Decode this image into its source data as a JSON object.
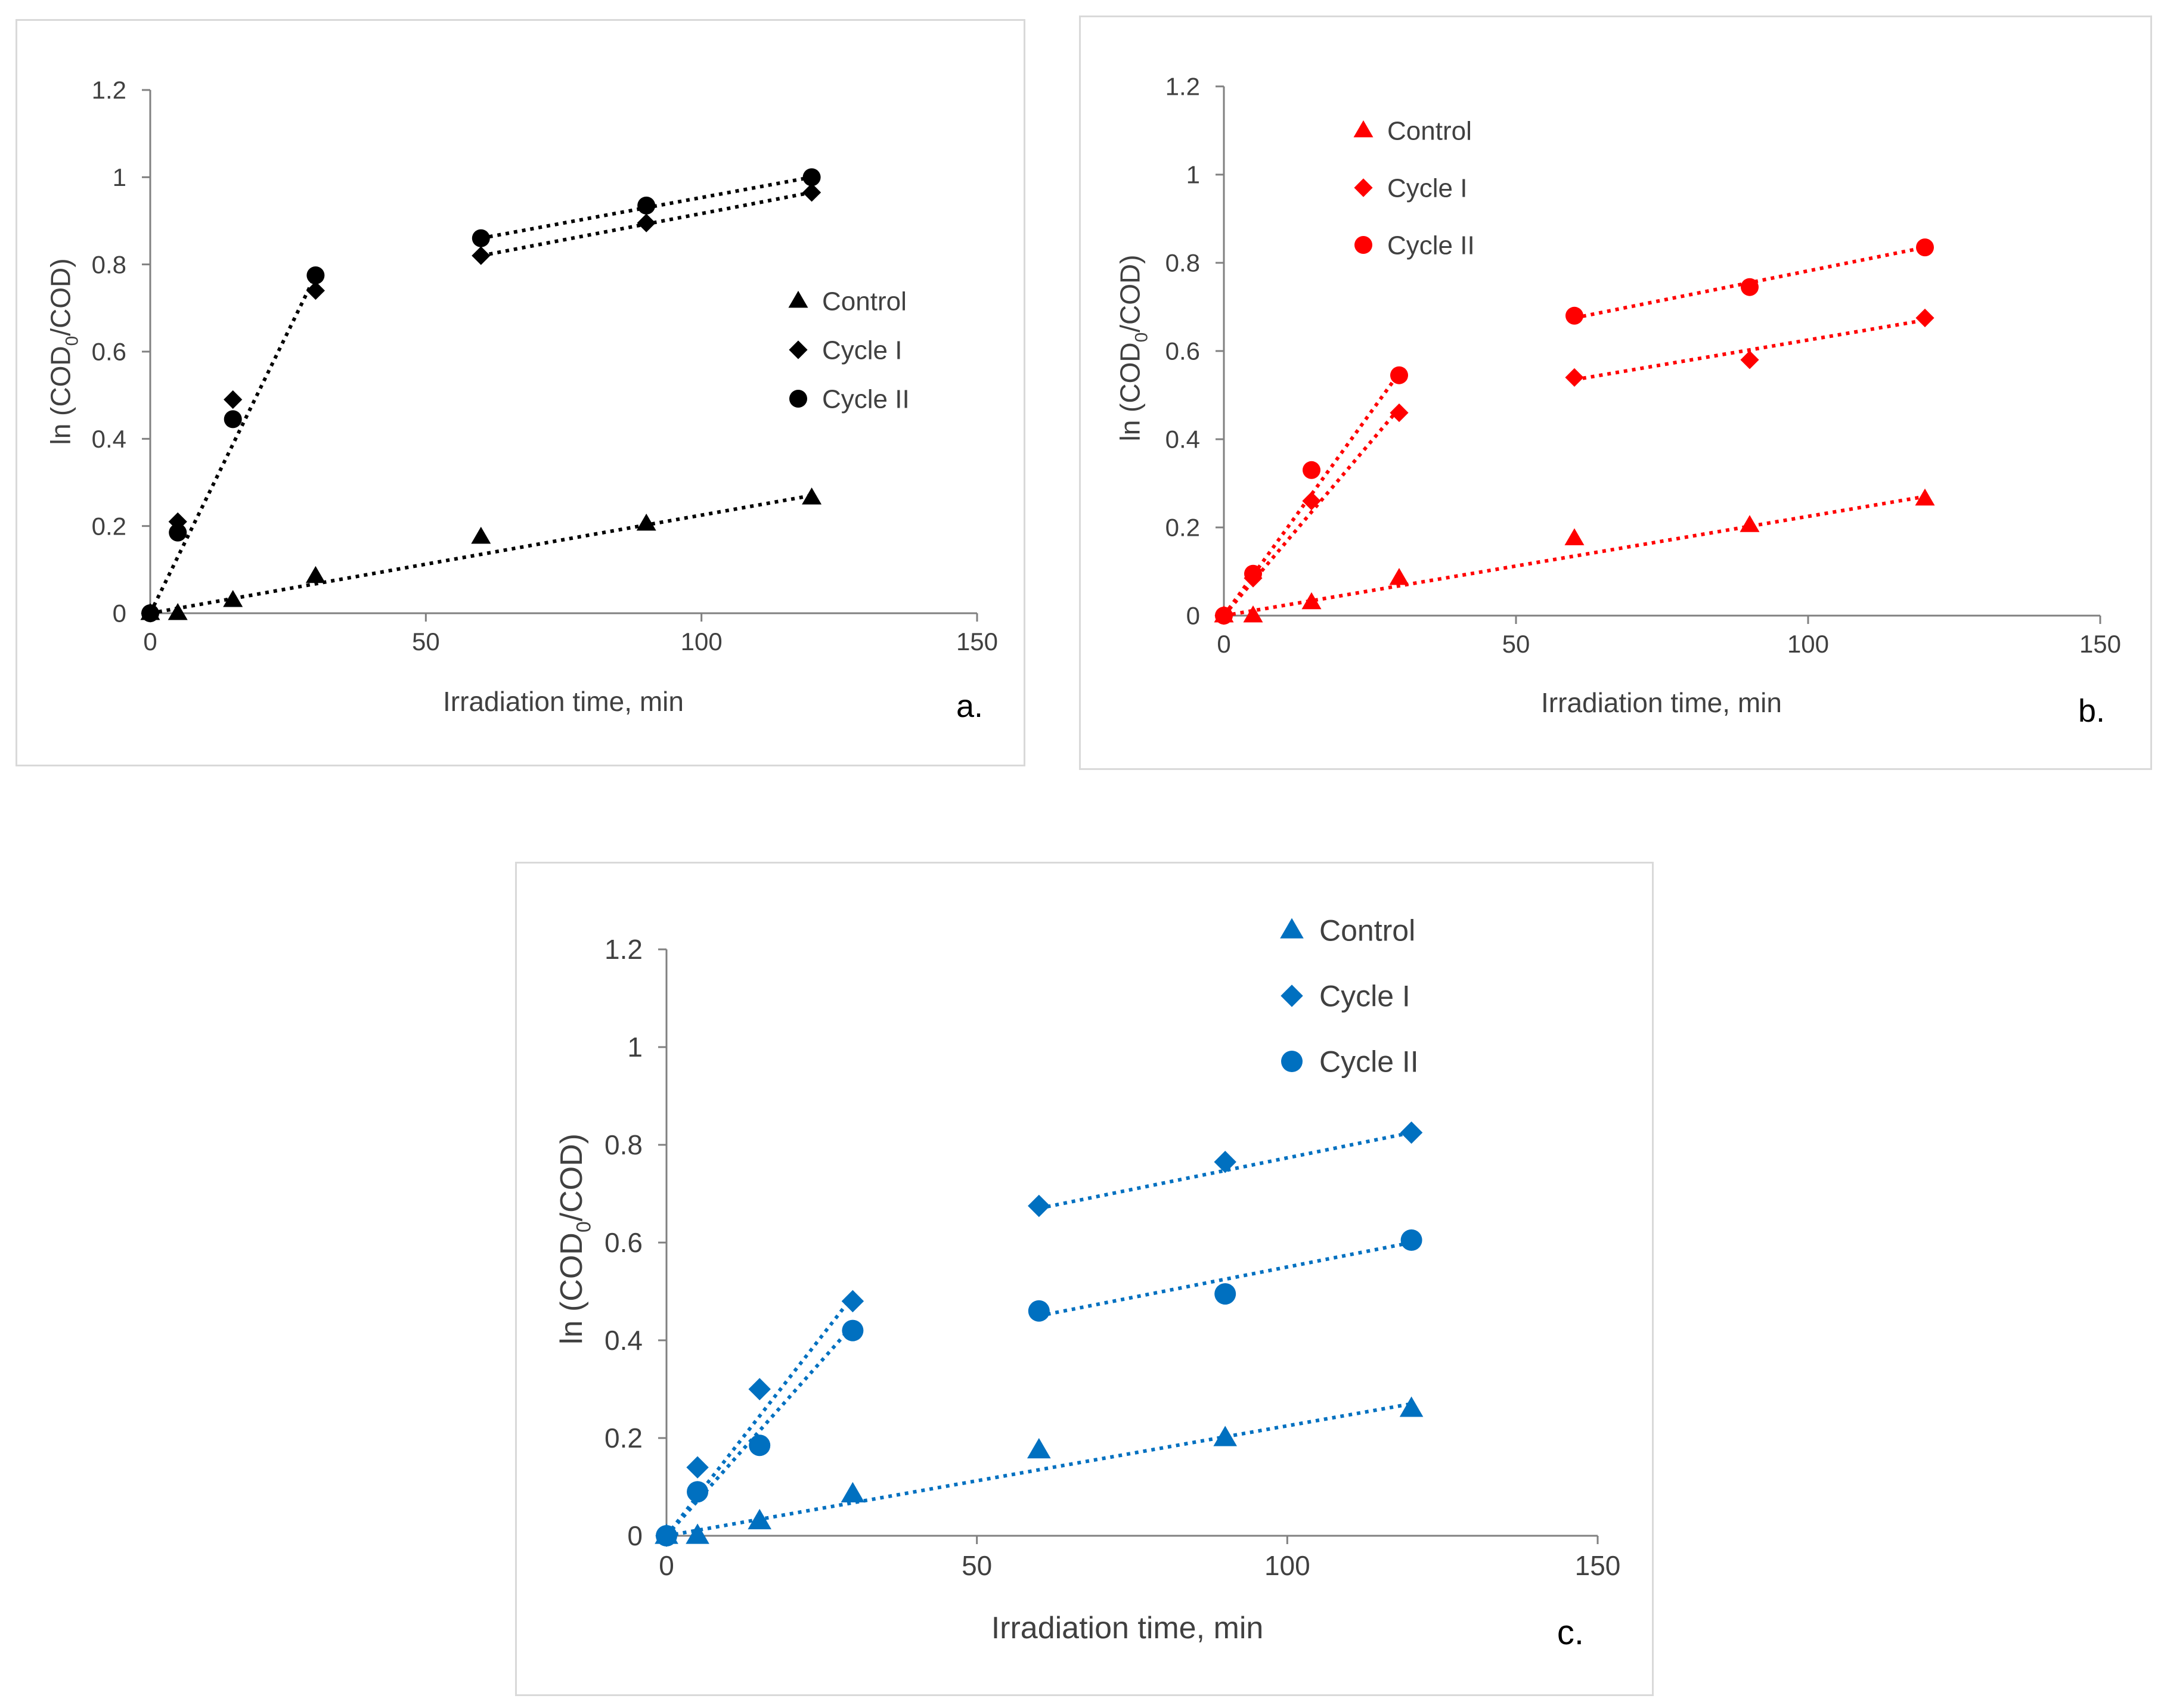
{
  "chart_data": [
    {
      "type": "scatter",
      "panel_label": "a.",
      "color": "#000000",
      "xlabel": "Irradiation time, min",
      "ylabel_main": "ln (COD",
      "ylabel_sub": "0",
      "ylabel_tail": "/COD)",
      "xlim": [
        0,
        150
      ],
      "ylim": [
        0,
        1.2
      ],
      "xticks": [
        "0",
        "50",
        "100",
        "150"
      ],
      "yticks": [
        "0",
        "0.2",
        "0.4",
        "0.6",
        "0.8",
        "1",
        "1.2"
      ],
      "legend_position": "right-middle",
      "series": [
        {
          "name": "Control",
          "marker": "triangle",
          "x": [
            0,
            5,
            15,
            30,
            60,
            90,
            120
          ],
          "y": [
            0,
            0,
            0.03,
            0.085,
            0.175,
            0.205,
            0.265
          ],
          "fits": [
            {
              "x": [
                0,
                120
              ],
              "y": [
                0,
                0.27
              ]
            }
          ]
        },
        {
          "name": "Cycle I",
          "marker": "diamond",
          "x": [
            0,
            5,
            15,
            30,
            60,
            90,
            120
          ],
          "y": [
            0,
            0.21,
            0.49,
            0.74,
            0.82,
            0.895,
            0.965
          ],
          "fits": [
            {
              "x": [
                0,
                30
              ],
              "y": [
                0,
                0.775
              ]
            },
            {
              "x": [
                60,
                120
              ],
              "y": [
                0.82,
                0.965
              ]
            }
          ]
        },
        {
          "name": "Cycle II",
          "marker": "circle",
          "x": [
            0,
            5,
            15,
            30,
            60,
            90,
            120
          ],
          "y": [
            0,
            0.185,
            0.445,
            0.775,
            0.86,
            0.935,
            1.0
          ],
          "fits": [
            {
              "x": [
                60,
                120
              ],
              "y": [
                0.86,
                1.0
              ]
            }
          ]
        }
      ]
    },
    {
      "type": "scatter",
      "panel_label": "b.",
      "color": "#ff0000",
      "xlabel": "Irradiation time, min",
      "ylabel_main": "ln (COD",
      "ylabel_sub": "0",
      "ylabel_tail": "/COD)",
      "xlim": [
        0,
        150
      ],
      "ylim": [
        0,
        1.2
      ],
      "xticks": [
        "0",
        "50",
        "100",
        "150"
      ],
      "yticks": [
        "0",
        "0.2",
        "0.4",
        "0.6",
        "0.8",
        "1",
        "1.2"
      ],
      "legend_position": "top-left",
      "series": [
        {
          "name": "Control",
          "marker": "triangle",
          "x": [
            0,
            5,
            15,
            30,
            60,
            90,
            120
          ],
          "y": [
            0,
            0,
            0.03,
            0.085,
            0.175,
            0.205,
            0.265
          ],
          "fits": [
            {
              "x": [
                0,
                120
              ],
              "y": [
                0,
                0.27
              ]
            }
          ]
        },
        {
          "name": "Cycle I",
          "marker": "diamond",
          "x": [
            0,
            5,
            15,
            30,
            60,
            90,
            120
          ],
          "y": [
            0,
            0.085,
            0.26,
            0.46,
            0.54,
            0.58,
            0.675
          ],
          "fits": [
            {
              "x": [
                0,
                30
              ],
              "y": [
                0,
                0.47
              ]
            },
            {
              "x": [
                60,
                120
              ],
              "y": [
                0.535,
                0.67
              ]
            }
          ]
        },
        {
          "name": "Cycle II",
          "marker": "circle",
          "x": [
            0,
            5,
            15,
            30,
            60,
            90,
            120
          ],
          "y": [
            0,
            0.095,
            0.33,
            0.545,
            0.68,
            0.745,
            0.835
          ],
          "fits": [
            {
              "x": [
                0,
                30
              ],
              "y": [
                0,
                0.55
              ]
            },
            {
              "x": [
                60,
                120
              ],
              "y": [
                0.675,
                0.835
              ]
            }
          ]
        }
      ]
    },
    {
      "type": "scatter",
      "panel_label": "c.",
      "color": "#0070c0",
      "xlabel": "Irradiation time, min",
      "ylabel_main": "ln (COD",
      "ylabel_sub": "0",
      "ylabel_tail": "/COD)",
      "xlim": [
        0,
        150
      ],
      "ylim": [
        0,
        1.2
      ],
      "xticks": [
        "0",
        "50",
        "100",
        "150"
      ],
      "yticks": [
        "0",
        "0.2",
        "0.4",
        "0.6",
        "0.8",
        "1",
        "1.2"
      ],
      "legend_position": "top-right",
      "series": [
        {
          "name": "Control",
          "marker": "triangle",
          "x": [
            0,
            5,
            15,
            30,
            60,
            90,
            120
          ],
          "y": [
            0,
            0,
            0.03,
            0.085,
            0.175,
            0.2,
            0.26
          ],
          "fits": [
            {
              "x": [
                0,
                120
              ],
              "y": [
                0,
                0.27
              ]
            }
          ]
        },
        {
          "name": "Cycle I",
          "marker": "diamond",
          "x": [
            0,
            5,
            15,
            30,
            60,
            90,
            120
          ],
          "y": [
            0,
            0.14,
            0.3,
            0.48,
            0.675,
            0.765,
            0.825
          ],
          "fits": [
            {
              "x": [
                0,
                30
              ],
              "y": [
                0,
                0.49
              ]
            },
            {
              "x": [
                60,
                120
              ],
              "y": [
                0.67,
                0.825
              ]
            }
          ]
        },
        {
          "name": "Cycle II",
          "marker": "circle",
          "x": [
            0,
            5,
            15,
            30,
            60,
            90,
            120
          ],
          "y": [
            0,
            0.09,
            0.185,
            0.42,
            0.46,
            0.495,
            0.605
          ],
          "fits": [
            {
              "x": [
                0,
                30
              ],
              "y": [
                0,
                0.43
              ]
            },
            {
              "x": [
                60,
                120
              ],
              "y": [
                0.45,
                0.6
              ]
            }
          ]
        }
      ]
    }
  ]
}
